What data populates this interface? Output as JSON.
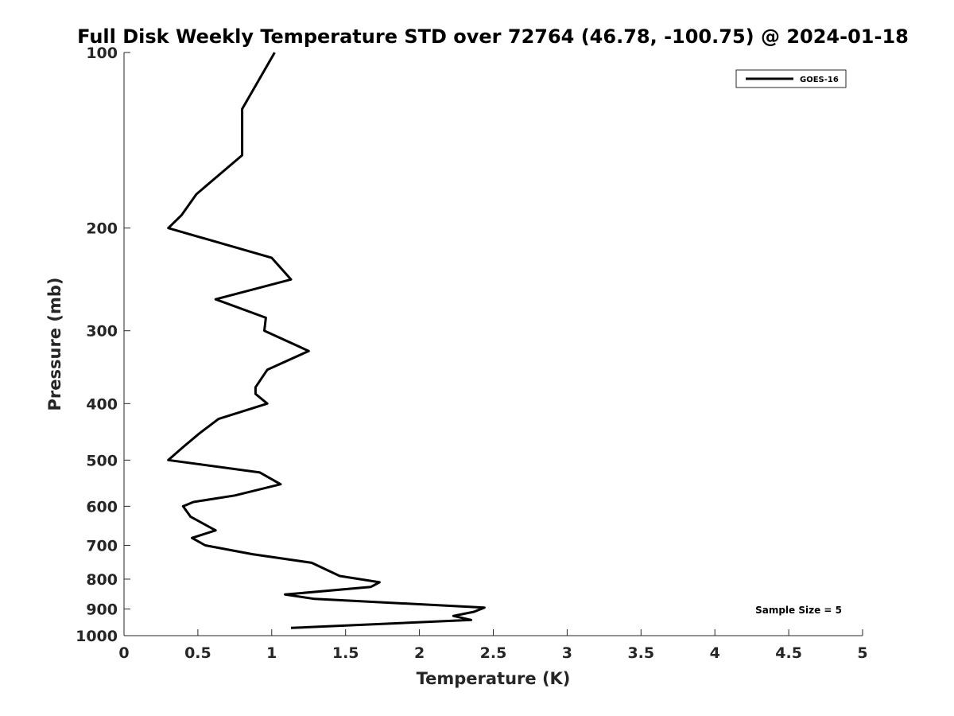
{
  "chart_data": {
    "type": "line",
    "title": "Full Disk Weekly Temperature STD over 72764 (46.78, -100.75) @ 2024-01-18",
    "xlabel": "Temperature (K)",
    "ylabel": "Pressure (mb)",
    "xlim": [
      0,
      5
    ],
    "ylim": [
      100,
      1000
    ],
    "y_scale": "log",
    "y_reversed": true,
    "x_ticks": [
      "0",
      "0.5",
      "1",
      "1.5",
      "2",
      "2.5",
      "3",
      "3.5",
      "4",
      "4.5",
      "5"
    ],
    "y_ticks": [
      "100",
      "200",
      "300",
      "400",
      "500",
      "600",
      "700",
      "800",
      "900",
      "1000"
    ],
    "grid": false,
    "legend_position": "top-right",
    "annotation": "Sample Size = 5",
    "series": [
      {
        "name": "GOES-16",
        "color": "#000000",
        "points": [
          [
            1.02,
            100
          ],
          [
            0.8,
            125
          ],
          [
            0.8,
            150
          ],
          [
            0.49,
            175
          ],
          [
            0.39,
            190
          ],
          [
            0.3,
            200
          ],
          [
            1.0,
            225
          ],
          [
            1.13,
            245
          ],
          [
            0.62,
            265
          ],
          [
            0.96,
            285
          ],
          [
            0.95,
            300
          ],
          [
            1.25,
            325
          ],
          [
            0.97,
            350
          ],
          [
            0.89,
            375
          ],
          [
            0.89,
            385
          ],
          [
            0.97,
            400
          ],
          [
            0.64,
            425
          ],
          [
            0.51,
            450
          ],
          [
            0.4,
            475
          ],
          [
            0.3,
            500
          ],
          [
            0.92,
            525
          ],
          [
            1.06,
            550
          ],
          [
            0.75,
            575
          ],
          [
            0.47,
            590
          ],
          [
            0.4,
            600
          ],
          [
            0.45,
            625
          ],
          [
            0.62,
            660
          ],
          [
            0.46,
            680
          ],
          [
            0.55,
            700
          ],
          [
            0.87,
            725
          ],
          [
            1.27,
            750
          ],
          [
            1.39,
            775
          ],
          [
            1.46,
            790
          ],
          [
            1.73,
            810
          ],
          [
            1.67,
            825
          ],
          [
            1.09,
            850
          ],
          [
            1.29,
            865
          ],
          [
            2.44,
            895
          ],
          [
            2.37,
            910
          ],
          [
            2.23,
            925
          ],
          [
            2.35,
            940
          ],
          [
            1.13,
            970
          ]
        ]
      }
    ]
  }
}
